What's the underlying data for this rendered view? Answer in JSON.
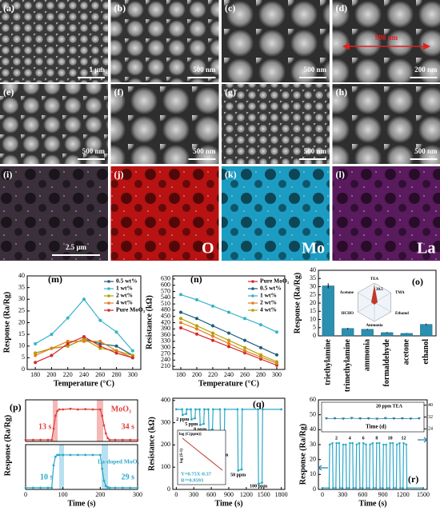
{
  "images": [
    {
      "label": "(a)",
      "scale": "1 μm"
    },
    {
      "label": "(b)",
      "scale": "500 nm"
    },
    {
      "label": "(c)",
      "scale": "500 nm"
    },
    {
      "label": "(d)",
      "scale": "200 nm",
      "annotation": "900 nm"
    },
    {
      "label": "(e)",
      "scale": "500 nm"
    },
    {
      "label": "(f)",
      "scale": "500 nm"
    },
    {
      "label": "(g)",
      "scale": "500 nm"
    },
    {
      "label": "(h)",
      "scale": "500 nm"
    }
  ],
  "maps": [
    {
      "label": "(i)",
      "scale": "2.5 μm",
      "color": "#3a2f3a"
    },
    {
      "label": "(j)",
      "element": "O",
      "color": "#b81212"
    },
    {
      "label": "(k)",
      "element": "Mo",
      "color": "#1c9cc2"
    },
    {
      "label": "(l)",
      "element": "La",
      "color": "#5a1a5e"
    }
  ],
  "chart_data": [
    {
      "type": "line",
      "label": "(m)",
      "xlabel": "Temperature (°C)",
      "ylabel": "Response (Ra/Rg)",
      "x": [
        180,
        200,
        220,
        240,
        260,
        280,
        300
      ],
      "xlim": [
        170,
        310
      ],
      "xticks": [
        180,
        200,
        220,
        240,
        260,
        280,
        300
      ],
      "ylim": [
        0,
        40
      ],
      "yticks": [
        0,
        5,
        10,
        15,
        20,
        25,
        30,
        35,
        40
      ],
      "markers": true,
      "legend": "upper right",
      "series": [
        {
          "name": "0.5 wt%",
          "color": "#1f5f7a",
          "values": [
            7,
            9,
            10,
            13,
            11,
            10,
            6
          ]
        },
        {
          "name": "1 wt%",
          "color": "#36b3c9",
          "values": [
            11,
            15,
            22,
            30,
            21,
            16,
            8
          ]
        },
        {
          "name": "2 wt%",
          "color": "#b8a000",
          "values": [
            7,
            9,
            10,
            13,
            9,
            8,
            6
          ]
        },
        {
          "name": "4 wt%",
          "color": "#e08020",
          "values": [
            6,
            9,
            12,
            12,
            12,
            8,
            5
          ]
        },
        {
          "name": "Pure MoO₃",
          "color": "#d42a2a",
          "values": [
            3,
            6,
            11,
            14,
            10,
            7,
            5
          ]
        }
      ]
    },
    {
      "type": "line",
      "label": "(n)",
      "xlabel": "Temperature (°C)",
      "ylabel": "Resistance (kΩ)",
      "x": [
        180,
        200,
        220,
        240,
        260,
        280,
        300
      ],
      "xlim": [
        170,
        310
      ],
      "xticks": [
        180,
        200,
        220,
        240,
        260,
        280,
        300
      ],
      "ylim": [
        195,
        645
      ],
      "yticks": [
        210,
        240,
        270,
        300,
        330,
        360,
        390,
        420,
        450,
        480,
        510,
        540,
        570,
        600,
        630
      ],
      "markers": true,
      "legend": "upper right",
      "series": [
        {
          "name": "Pure MoO₃",
          "color": "#d42a2a",
          "values": [
            395,
            365,
            335,
            305,
            275,
            245,
            215
          ]
        },
        {
          "name": "0.5 wt%",
          "color": "#1f5f7a",
          "values": [
            470,
            440,
            405,
            370,
            335,
            300,
            265
          ]
        },
        {
          "name": "1 wt%",
          "color": "#36b3c9",
          "values": [
            555,
            530,
            500,
            470,
            440,
            410,
            375
          ]
        },
        {
          "name": "2 wt%",
          "color": "#e08020",
          "values": [
            420,
            390,
            355,
            320,
            285,
            255,
            225
          ]
        },
        {
          "name": "4 wt%",
          "color": "#b8a000",
          "values": [
            440,
            405,
            370,
            335,
            300,
            265,
            232
          ]
        }
      ]
    },
    {
      "type": "bar",
      "label": "(o)",
      "ylabel": "Response (Ra/Rg)",
      "categories": [
        "triethylamine",
        "trimethylamine",
        "ammonia",
        "formaldehyde",
        "acetone",
        "ethanol"
      ],
      "values": [
        30.5,
        4.5,
        4,
        2,
        1.5,
        7
      ],
      "errors": [
        1.5,
        0.4,
        0.3,
        0.3,
        0.2,
        0.5
      ],
      "color": "#2a8fb0",
      "ylim": [
        0,
        40
      ],
      "yticks": [
        0,
        5,
        10,
        15,
        20,
        25,
        30,
        35,
        40
      ],
      "inset_labels": [
        "TEA",
        "TMA",
        "Ethanol",
        "Ammonia",
        "HCHO",
        "Acetone",
        "30.5"
      ]
    },
    {
      "type": "line",
      "label": "(p)",
      "ylabel": "Response (Ra/Rg)",
      "x": [
        0,
        20,
        40,
        60,
        70,
        75,
        80,
        85,
        90,
        100,
        120,
        140,
        160,
        180,
        200,
        205,
        210,
        215,
        220,
        225,
        240,
        260,
        280,
        300
      ],
      "xlim": [
        0,
        300
      ],
      "ylim": [
        0,
        1.3
      ],
      "markers": true,
      "series": [
        {
          "name": "MoO₃",
          "color": "#e0403a",
          "values": [
            0.05,
            0.05,
            0.05,
            0.05,
            0.05,
            0.4,
            0.8,
            0.95,
            1,
            1,
            1.02,
            1,
            1.01,
            1,
            1,
            0.8,
            0.5,
            0.25,
            0.1,
            0.05,
            0.05,
            0.05,
            0.05,
            0.05
          ]
        }
      ],
      "annotations": [
        "13 s",
        "34 s"
      ]
    },
    {
      "type": "line",
      "xlabel": "Time (s)",
      "x": [
        0,
        20,
        40,
        60,
        70,
        75,
        80,
        85,
        90,
        100,
        120,
        140,
        160,
        180,
        200,
        205,
        210,
        215,
        220,
        225,
        240,
        260,
        280,
        300
      ],
      "xlim": [
        0,
        300
      ],
      "xticks": [
        0,
        100,
        200,
        300
      ],
      "ylim": [
        0,
        1.3
      ],
      "markers": true,
      "series": [
        {
          "name": "La-doped MoO₃",
          "color": "#2aa8c8",
          "values": [
            0.05,
            0.05,
            0.05,
            0.05,
            0.05,
            0.7,
            0.95,
            1,
            1,
            1,
            1,
            1,
            1,
            1,
            1,
            0.6,
            0.25,
            0.1,
            0.06,
            0.05,
            0.05,
            0.05,
            0.05,
            0.05
          ]
        }
      ],
      "annotations": [
        "10 s",
        "29 s"
      ]
    },
    {
      "type": "line",
      "label": "(q)",
      "xlabel": "Time (s)",
      "ylabel": "Resistance (kΩ)",
      "x": [
        0,
        100,
        110,
        170,
        180,
        250,
        260,
        320,
        330,
        400,
        410,
        470,
        480,
        550,
        560,
        620,
        630,
        750,
        760,
        820,
        830,
        1050,
        1060,
        1120,
        1130,
        1400,
        1410,
        1470,
        1480,
        1800
      ],
      "xlim": [
        -60,
        1860
      ],
      "xticks": [
        0,
        300,
        600,
        900,
        1200,
        1500,
        1800
      ],
      "ylim": [
        0,
        410
      ],
      "yticks": [
        0,
        100,
        200,
        300,
        400
      ],
      "markers": true,
      "series": [
        {
          "name": "TEA",
          "color": "#2aa8c8",
          "values": [
            360,
            360,
            335,
            340,
            360,
            360,
            315,
            320,
            360,
            360,
            290,
            295,
            360,
            360,
            265,
            270,
            360,
            360,
            175,
            180,
            360,
            360,
            85,
            90,
            360,
            360,
            25,
            30,
            360,
            360
          ]
        }
      ],
      "annotations": [
        "2 ppm",
        "5 ppm",
        "8 ppm",
        "10 ppm",
        "20 ppm",
        "50 ppm",
        "100 ppm"
      ],
      "inset": {
        "xlabel": "log (C(ppm))",
        "ylabel": "log (S-1)",
        "equation": "Y=0.75X-0.37",
        "r2": "R²=0.9593"
      }
    },
    {
      "type": "line",
      "label": "(r)",
      "xlabel": "Time (s)",
      "ylabel": "Response (Ra/Rg)",
      "x": [
        0,
        100,
        108,
        150,
        158,
        200,
        208,
        250,
        258,
        300,
        308,
        350,
        358,
        400,
        408,
        450,
        458,
        500,
        508,
        550,
        558,
        600,
        608,
        650,
        658,
        700,
        708,
        750,
        758,
        800,
        808,
        850,
        858,
        900,
        908,
        950,
        958,
        1000,
        1008,
        1050,
        1058,
        1100,
        1108,
        1150,
        1158,
        1200,
        1208,
        1250,
        1258,
        1500
      ],
      "xlim": [
        -60,
        1560
      ],
      "xticks": [
        0,
        300,
        600,
        900,
        1200,
        1500
      ],
      "ylim": [
        0,
        60
      ],
      "yticks": [
        0,
        10,
        20,
        30,
        40,
        50,
        60
      ],
      "markers": true,
      "series": [
        {
          "name": "TEA",
          "color": "#2aa8c8",
          "values": [
            1,
            1,
            30,
            31,
            1,
            1,
            31,
            31,
            1,
            1,
            30,
            30,
            1,
            1,
            31,
            31,
            1,
            1,
            30,
            31,
            1,
            1,
            31,
            30,
            1,
            1,
            30,
            31,
            1,
            1,
            31,
            31,
            1,
            1,
            30,
            30,
            1,
            1,
            31,
            31,
            1,
            1,
            30,
            31,
            1,
            1,
            31,
            30,
            1,
            1
          ]
        }
      ],
      "cycle_labels": [
        "2",
        "4",
        "6",
        "8",
        "10",
        "12"
      ],
      "inset": {
        "xlabel": "Time (d)",
        "legend": "20 ppm TEA",
        "color": "#2a7fa8",
        "values": [
          31,
          31,
          30.8,
          31.2,
          30.9,
          31,
          30.7,
          31.1,
          30.9,
          31,
          30.8,
          31
        ],
        "y2lim": [
          22,
          42
        ],
        "y2ticks": [
          24,
          32,
          40
        ]
      }
    }
  ]
}
